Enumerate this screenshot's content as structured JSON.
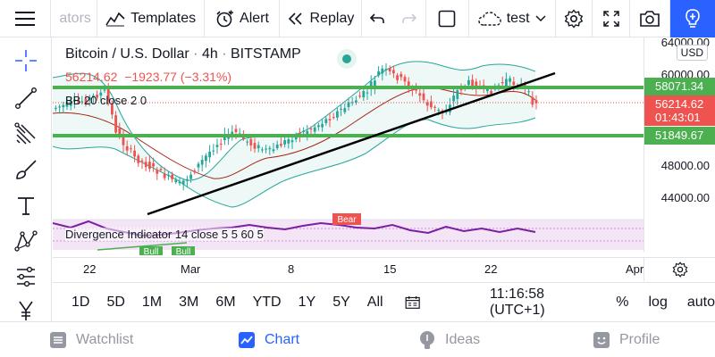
{
  "toolbar": {
    "symbol_fragment": "ators",
    "templates_label": "Templates",
    "alert_label": "Alert",
    "replay_label": "Replay",
    "layout_name": "test"
  },
  "legend": {
    "symbol": "Bitcoin / U.S. Dollar",
    "separator1": "·",
    "interval": "4h",
    "separator2": "·",
    "exchange": "BITSTAMP",
    "price": "56214.62",
    "change": "−1923.77 (−3.31%)",
    "bb_indicator": "BB 20 close 2 0",
    "divergence_indicator": "Divergence Indicator 14 close 5 5 60 5"
  },
  "markers": {
    "bear": "Bear",
    "bull1": "Bull",
    "bull2": "Bull"
  },
  "price_scale": {
    "currency": "USD",
    "labels": [
      "64000.00",
      "60000.00",
      "48000.00",
      "44000.00"
    ],
    "line_top_label": "58071.34",
    "line_bottom_label": "51849.67",
    "last_price_label": "56214.62",
    "countdown": "01:43:01"
  },
  "time_scale": {
    "labels": [
      "22",
      "Mar",
      "8",
      "15",
      "22",
      "Apr"
    ]
  },
  "range_buttons": [
    "1D",
    "5D",
    "1M",
    "3M",
    "6M",
    "YTD",
    "1Y",
    "5Y",
    "All"
  ],
  "clock": "11:16:58 (UTC+1)",
  "scale_options": {
    "percent": "%",
    "log": "log",
    "auto": "auto"
  },
  "bottom_nav": {
    "watchlist": "Watchlist",
    "chart": "Chart",
    "ideas": "Ideas",
    "profile": "Profile"
  },
  "colors": {
    "accent": "#2962ff",
    "up": "#26a69a",
    "down": "#ef5350",
    "support_line": "#4caf50",
    "divergence": "#9c27b0"
  },
  "icons": {
    "left_tools": [
      "crosshair-icon",
      "trendline-icon",
      "pitchfork-icon",
      "brush-icon",
      "text-icon",
      "pattern-icon",
      "prediction-icon",
      "measure-icon"
    ]
  }
}
